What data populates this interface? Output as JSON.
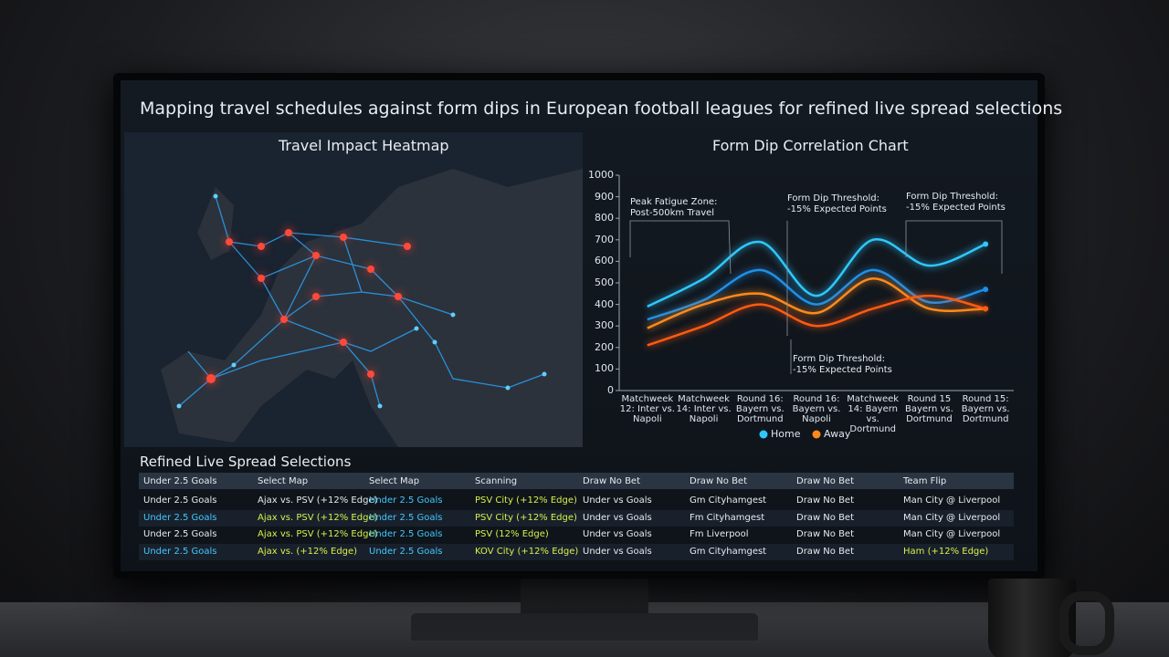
{
  "title": "Mapping travel schedules against form dips in European football leagues for refined live spread selections",
  "map": {
    "title": "Travel Impact Heatmap"
  },
  "chart_data": {
    "type": "line",
    "title": "Form Dip Correlation Chart",
    "categories": [
      "Matchweek 12: Inter vs. Napoli",
      "Matchweek 14: Inter vs. Napoli",
      "Round 16: Bayern vs. Dortmund",
      "Round 16: Bayern vs. Napoli",
      "Matchweek 14: Bayern vs. Dortmund",
      "Round 15 Bayern vs. Dortmund",
      "Round 15: Bayern vs. Dortmund"
    ],
    "series": [
      {
        "name": "Home",
        "color": "#2ec8ff",
        "values": [
          390,
          520,
          690,
          440,
          700,
          580,
          680
        ]
      },
      {
        "color": "#1f8fe6",
        "values": [
          330,
          420,
          560,
          400,
          560,
          410,
          470
        ]
      },
      {
        "name": "Away",
        "color": "#ff8a1c",
        "values": [
          290,
          400,
          450,
          360,
          520,
          380,
          380
        ]
      },
      {
        "color": "#ff5a12",
        "values": [
          210,
          300,
          400,
          300,
          380,
          440,
          380
        ]
      }
    ],
    "ylim": [
      0,
      1000
    ],
    "yticks": [
      0,
      100,
      200,
      300,
      400,
      500,
      600,
      700,
      800,
      900,
      1000
    ],
    "grid": false,
    "legend": "bottom",
    "annotations": [
      "Peak Fatigue Zone:\nPost-500km Travel",
      "Form Dip Threshold:\n-15% Expected Points",
      "Form Dip Threshold:\n-15% Expected Points",
      "Form Dip Threshold:\n-15% Expected Points"
    ]
  },
  "table": {
    "title": "Refined Live Spread Selections",
    "header": [
      "Under 2.5 Goals",
      "Select Map",
      "Select Map",
      "Scanning",
      "Draw No Bet",
      "Draw No Bet",
      "Draw No Bet",
      "Team Flip"
    ],
    "rows": [
      [
        "Under 2.5 Goals",
        "Ajax vs. PSV (+12% Edge)",
        "Under 2.5 Goals",
        "PSV City (+12% Edge)",
        "Under vs Goals",
        "Gm Cityhamgest",
        "Draw No Bet",
        "Man City @ Liverpool"
      ],
      [
        "Under 2.5 Goals",
        "Ajax vs. PSV (+12% Edge)",
        "Under 2.5 Goals",
        "PSV City (+12% Edge)",
        "Under vs Goals",
        "Fm Cityhamgest",
        "Draw No Bet",
        "Man City @ Liverpool"
      ],
      [
        "Under 2.5 Goals",
        "Ajax vs. PSV (+12% Edge)",
        "Under 2.5 Goals",
        "PSV (12% Edge)",
        "Under vs Goals",
        "Fm Liverpool",
        "Draw No Bet",
        "Man City @ Liverpool"
      ],
      [
        "Under 2.5 Goals",
        "Ajax vs. (+12% Edge)",
        "Under 2.5 Goals",
        "KOV City (+12% Edge)",
        "Under vs Goals",
        "Gm Cityhamgest",
        "Draw No Bet",
        "Ham (+12% Edge)"
      ]
    ]
  }
}
